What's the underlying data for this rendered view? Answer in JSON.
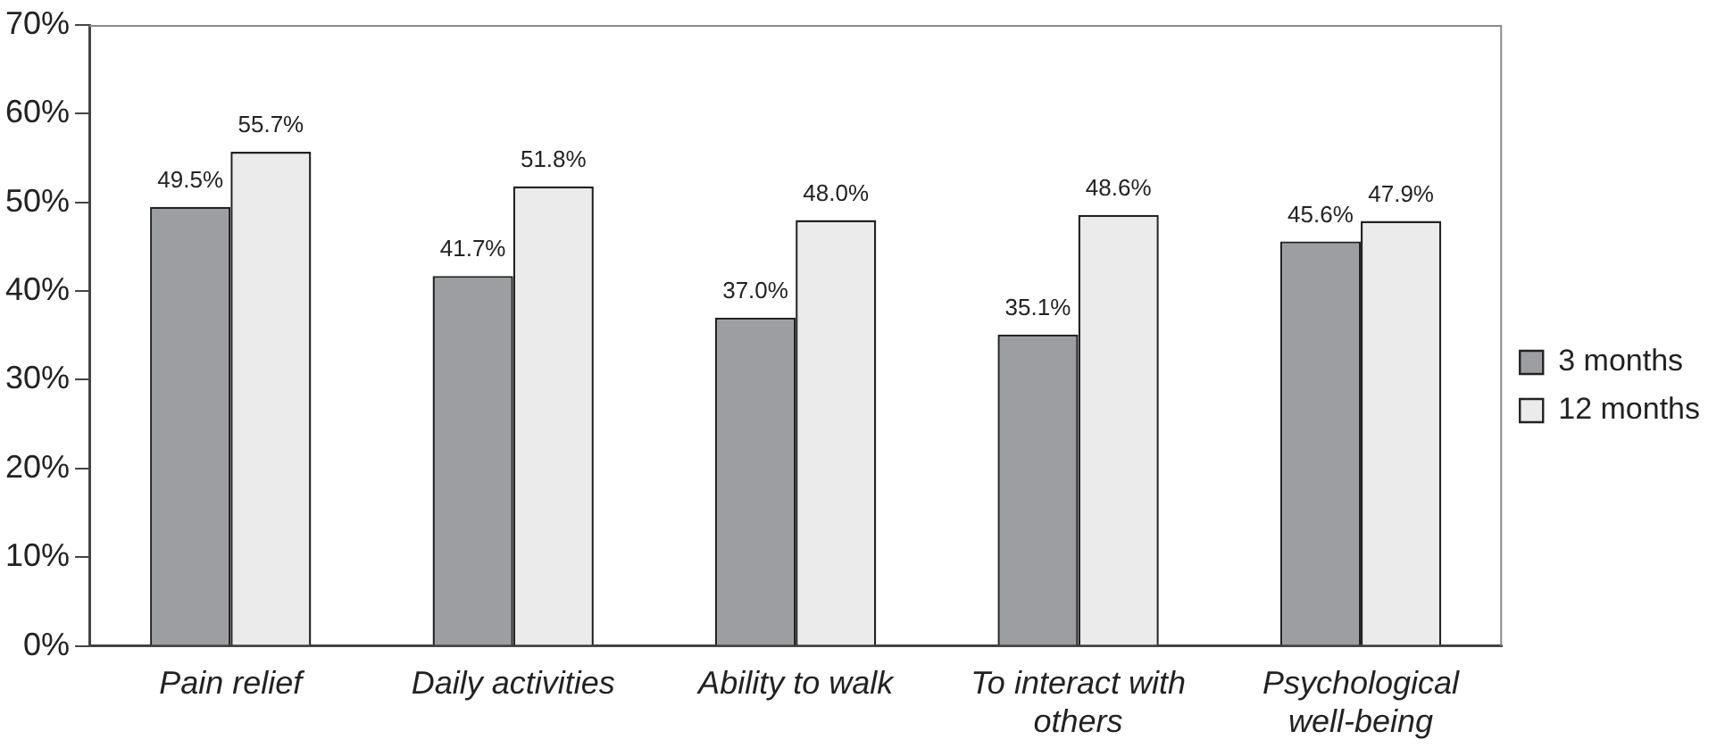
{
  "chart_data": {
    "type": "bar",
    "categories": [
      "Pain relief",
      "Daily activities",
      "Ability to walk",
      "To interact with others",
      "Psychological well-being"
    ],
    "series": [
      {
        "name": "3 months",
        "color": "#9c9ea2",
        "values": [
          49.5,
          41.7,
          37.0,
          35.1,
          45.6
        ],
        "value_labels": [
          "49.5%",
          "41.7%",
          "37.0%",
          "35.1%",
          "45.6%"
        ]
      },
      {
        "name": "12 months",
        "color": "#ebebeb",
        "values": [
          55.7,
          51.8,
          48.0,
          48.6,
          47.9
        ],
        "value_labels": [
          "55.7%",
          "51.8%",
          "48.0%",
          "48.6%",
          "47.9%"
        ]
      }
    ],
    "ylim": [
      0,
      70
    ],
    "yticks": [
      {
        "value": 0,
        "label": "0%"
      },
      {
        "value": 10,
        "label": "10%"
      },
      {
        "value": 20,
        "label": "20%"
      },
      {
        "value": 30,
        "label": "30%"
      },
      {
        "value": 40,
        "label": "40%"
      },
      {
        "value": 50,
        "label": "50%"
      },
      {
        "value": 60,
        "label": "60%"
      },
      {
        "value": 70,
        "label": "70%"
      }
    ],
    "grid": false,
    "legend": "right"
  }
}
